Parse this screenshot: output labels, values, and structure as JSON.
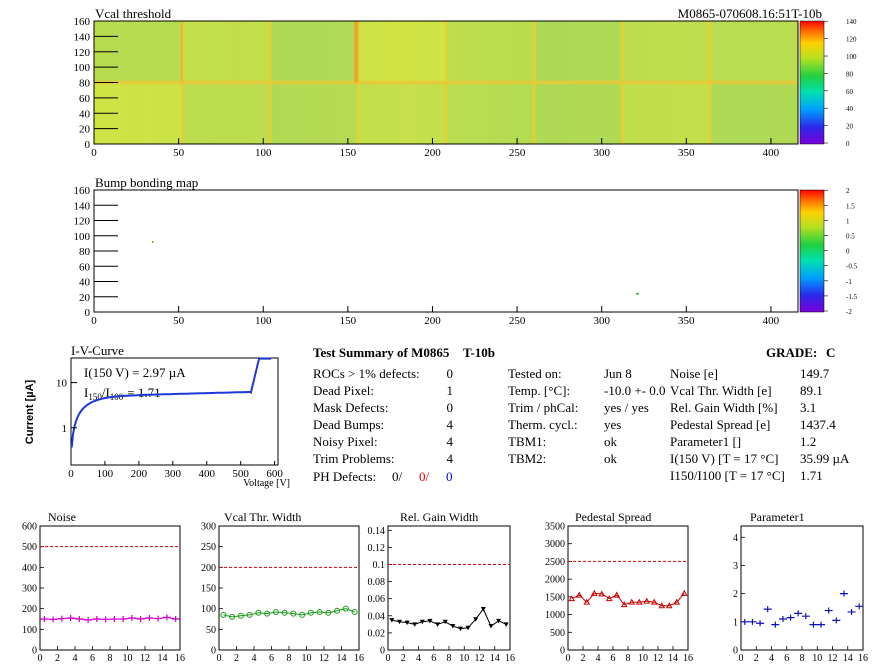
{
  "vcal_map": {
    "title": "Vcal threshold",
    "module_id": "M0865-070608.16:51T-10b",
    "x_ticks": [
      "0",
      "50",
      "100",
      "150",
      "200",
      "250",
      "300",
      "350",
      "400"
    ],
    "y_ticks": [
      "0",
      "20",
      "40",
      "60",
      "80",
      "100",
      "120",
      "140",
      "160"
    ],
    "scale_ticks": [
      "0",
      "20",
      "40",
      "60",
      "80",
      "100",
      "120",
      "140"
    ]
  },
  "bump_map": {
    "title": "Bump bonding map",
    "x_ticks": [
      "0",
      "50",
      "100",
      "150",
      "200",
      "250",
      "300",
      "350",
      "400"
    ],
    "y_ticks": [
      "0",
      "20",
      "40",
      "60",
      "80",
      "100",
      "120",
      "140",
      "160"
    ],
    "scale_ticks": [
      "-2",
      "-1.5",
      "-1",
      "-0.5",
      "0",
      "0.5",
      "1",
      "1.5",
      "2"
    ]
  },
  "iv_curve": {
    "title": "I-V-Curve",
    "annotation_i150": "I(150 V) = 2.97 µA",
    "annotation_ratio_label": "I",
    "annotation_ratio_sub1": "150",
    "annotation_ratio_mid": "/I",
    "annotation_ratio_sub2": "100",
    "annotation_ratio_value": "=  1.71",
    "ylabel": "Current [µA]",
    "xlabel": "Voltage [V]",
    "x_ticks": [
      "0",
      "100",
      "200",
      "300",
      "400",
      "500",
      "600"
    ],
    "y_ticks": [
      "1",
      "10"
    ],
    "color": "#1d38d8"
  },
  "summary": {
    "title": "Test Summary of M0865",
    "tag": "T-10b",
    "grade_label": "GRADE:",
    "grade_value": "C",
    "left_rows": [
      {
        "label": "ROCs > 1% defects:",
        "value": "0"
      },
      {
        "label": "Dead Pixel:",
        "value": "1"
      },
      {
        "label": "Mask Defects:",
        "value": "0"
      },
      {
        "label": "Dead Bumps:",
        "value": "4"
      },
      {
        "label": "Noisy Pixel:",
        "value": "4"
      },
      {
        "label": "Trim Problems:",
        "value": "4"
      }
    ],
    "ph_defects": {
      "label": "PH Defects:",
      "v1": "0/",
      "v2": "0/",
      "v3": "0"
    },
    "mid_rows": [
      {
        "label": "Tested on:",
        "value": "Jun 8"
      },
      {
        "label": "Temp. [°C]:",
        "value": "-10.0 +- 0.0"
      },
      {
        "label": "Trim / phCal:",
        "value": "yes / yes"
      },
      {
        "label": "Therm. cycl.:",
        "value": "yes"
      },
      {
        "label": "TBM1:",
        "value": "ok"
      },
      {
        "label": "TBM2:",
        "value": "ok"
      }
    ],
    "right_rows": [
      {
        "label": "Noise [e]",
        "value": "149.7"
      },
      {
        "label": "Vcal Thr. Width [e]",
        "value": "89.1"
      },
      {
        "label": "Rel. Gain Width [%]",
        "value": "3.1"
      },
      {
        "label": "Pedestal Spread [e]",
        "value": "1437.4"
      },
      {
        "label": "Parameter1 []",
        "value": "1.2"
      },
      {
        "label": "I(150 V) [T = 17 °C]",
        "value": "35.99 µA"
      },
      {
        "label": "I150/I100  [T = 17 °C]",
        "value": "1.71"
      }
    ]
  },
  "chart_data": [
    {
      "type": "line",
      "title": "Noise",
      "x_ticks": [
        "0",
        "2",
        "4",
        "6",
        "8",
        "10",
        "12",
        "14",
        "16"
      ],
      "y_ticks": [
        "0",
        "100",
        "200",
        "300",
        "400",
        "500",
        "600"
      ],
      "ylim": [
        0,
        600
      ],
      "xlim": [
        0,
        16
      ],
      "limit_line": 500,
      "color": "#d000d0",
      "marker": "cross",
      "x": [
        0,
        1,
        2,
        3,
        4,
        5,
        6,
        7,
        8,
        9,
        10,
        11,
        12,
        13,
        14,
        15
      ],
      "values": [
        150,
        148,
        152,
        155,
        150,
        145,
        150,
        148,
        150,
        150,
        155,
        150,
        155,
        152,
        158,
        150
      ]
    },
    {
      "type": "line",
      "title": "Vcal Thr. Width",
      "x_ticks": [
        "0",
        "2",
        "4",
        "6",
        "8",
        "10",
        "12",
        "14",
        "16"
      ],
      "y_ticks": [
        "0",
        "50",
        "100",
        "150",
        "200",
        "250",
        "300"
      ],
      "ylim": [
        0,
        300
      ],
      "xlim": [
        0,
        16
      ],
      "limit_line": 200,
      "color": "#1a9a1a",
      "marker": "circle",
      "x": [
        0,
        1,
        2,
        3,
        4,
        5,
        6,
        7,
        8,
        9,
        10,
        11,
        12,
        13,
        14,
        15
      ],
      "values": [
        85,
        80,
        83,
        85,
        90,
        88,
        92,
        90,
        88,
        85,
        90,
        92,
        90,
        95,
        100,
        92
      ]
    },
    {
      "type": "line",
      "title": "Rel. Gain Width",
      "x_ticks": [
        "0",
        "2",
        "4",
        "6",
        "8",
        "10",
        "12",
        "14",
        "16"
      ],
      "y_ticks": [
        "0",
        "0.02",
        "0.04",
        "0.06",
        "0.08",
        "0.1",
        "0.12",
        "0.14"
      ],
      "ylim": [
        0,
        0.145
      ],
      "xlim": [
        0,
        16
      ],
      "limit_line": 0.1,
      "color": "#000000",
      "marker": "triangle-down",
      "x": [
        0,
        1,
        2,
        3,
        4,
        5,
        6,
        7,
        8,
        9,
        10,
        11,
        12,
        13,
        14,
        15
      ],
      "values": [
        0.035,
        0.033,
        0.032,
        0.03,
        0.033,
        0.034,
        0.03,
        0.033,
        0.028,
        0.025,
        0.026,
        0.036,
        0.048,
        0.028,
        0.034,
        0.03
      ]
    },
    {
      "type": "line",
      "title": "Pedestal Spread",
      "x_ticks": [
        "0",
        "2",
        "4",
        "6",
        "8",
        "10",
        "12",
        "14",
        "16"
      ],
      "y_ticks": [
        "0",
        "500",
        "1000",
        "1500",
        "2000",
        "2500",
        "3000",
        "3500"
      ],
      "ylim": [
        0,
        3500
      ],
      "xlim": [
        0,
        16
      ],
      "limit_line": 2500,
      "color": "#cc0000",
      "marker": "triangle-up",
      "x": [
        0,
        1,
        2,
        3,
        4,
        5,
        6,
        7,
        8,
        9,
        10,
        11,
        12,
        13,
        14,
        15
      ],
      "values": [
        1450,
        1550,
        1350,
        1600,
        1580,
        1450,
        1550,
        1280,
        1350,
        1350,
        1380,
        1350,
        1250,
        1250,
        1350,
        1600
      ]
    },
    {
      "type": "scatter",
      "title": "Parameter1",
      "x_ticks": [
        "0",
        "2",
        "4",
        "6",
        "8",
        "10",
        "12",
        "14",
        "16"
      ],
      "y_ticks": [
        "0",
        "1",
        "2",
        "3",
        "4"
      ],
      "ylim": [
        0,
        4.4
      ],
      "xlim": [
        0,
        16
      ],
      "color": "#1010c0",
      "marker": "cross",
      "x": [
        0,
        1,
        2,
        3,
        4,
        5,
        6,
        7,
        8,
        9,
        10,
        11,
        12,
        13,
        14,
        15
      ],
      "values": [
        1.0,
        1.0,
        0.95,
        1.45,
        0.9,
        1.1,
        1.15,
        1.3,
        1.2,
        0.9,
        0.9,
        1.4,
        1.05,
        2.0,
        1.35,
        1.55
      ]
    }
  ]
}
